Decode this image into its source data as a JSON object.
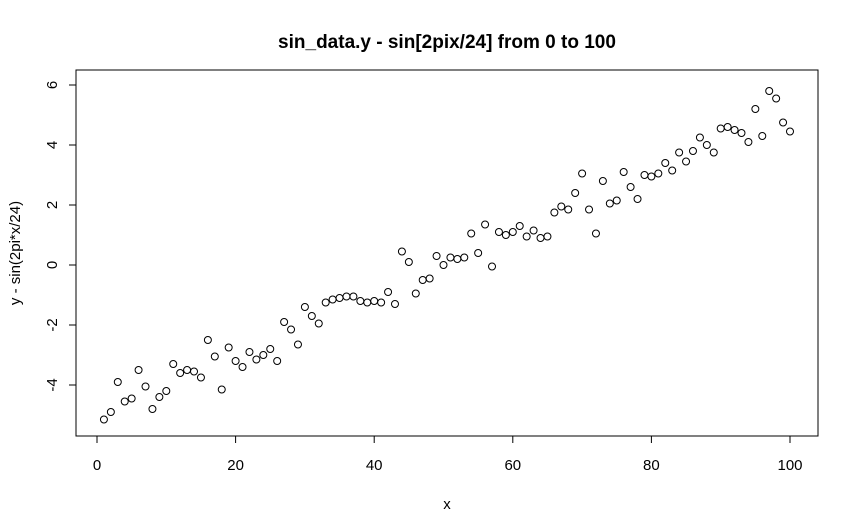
{
  "chart_data": {
    "type": "scatter",
    "title": "sin_data.y  - sin[2pix/24] from 0 to 100",
    "xlabel": "x",
    "ylabel": "y - sin(2pi*x/24)",
    "xlim": [
      0,
      100
    ],
    "ylim": [
      -5.5,
      6.3
    ],
    "x_ticks": [
      0,
      20,
      40,
      60,
      80,
      100
    ],
    "y_ticks": [
      -4,
      -2,
      0,
      2,
      4,
      6
    ],
    "grid": false,
    "legend": "none",
    "point_style": "open-circle",
    "series": [
      {
        "x": [
          1,
          2,
          3,
          4,
          5,
          6,
          7,
          8,
          9,
          10,
          11,
          12,
          13,
          14,
          15,
          16,
          17,
          18,
          19,
          20,
          21,
          22,
          23,
          24,
          25,
          26,
          27,
          28,
          29,
          30,
          31,
          32,
          33,
          34,
          35,
          36,
          37,
          38,
          39,
          40,
          41,
          42,
          43,
          44,
          45,
          46,
          47,
          48,
          49,
          50,
          51,
          52,
          53,
          54,
          55,
          56,
          57,
          58,
          59,
          60,
          61,
          62,
          63,
          64,
          65,
          66,
          67,
          68,
          69,
          70,
          71,
          72,
          73,
          74,
          75,
          76,
          77,
          78,
          79,
          80,
          81,
          82,
          83,
          84,
          85,
          86,
          87,
          88,
          89,
          90,
          91,
          92,
          93,
          94,
          95,
          96,
          97,
          98,
          99,
          100
        ],
        "y": [
          -5.15,
          -4.9,
          -3.9,
          -4.55,
          -4.45,
          -3.5,
          -4.05,
          -4.8,
          -4.4,
          -4.2,
          -3.3,
          -3.6,
          -3.5,
          -3.55,
          -3.75,
          -2.5,
          -3.05,
          -4.15,
          -2.75,
          -3.2,
          -3.4,
          -2.9,
          -3.15,
          -3.0,
          -2.8,
          -3.2,
          -1.9,
          -2.15,
          -2.65,
          -1.4,
          -1.7,
          -1.95,
          -1.25,
          -1.15,
          -1.1,
          -1.05,
          -1.05,
          -1.2,
          -1.25,
          -1.2,
          -1.25,
          -0.9,
          -1.3,
          0.45,
          0.1,
          -0.95,
          -0.5,
          -0.45,
          0.3,
          0.0,
          0.25,
          0.2,
          0.25,
          1.05,
          0.4,
          1.35,
          -0.05,
          1.1,
          1.0,
          1.1,
          1.3,
          0.95,
          1.15,
          0.9,
          0.95,
          1.75,
          1.95,
          1.85,
          2.4,
          3.05,
          1.85,
          1.05,
          2.8,
          2.05,
          2.15,
          3.1,
          2.6,
          2.2,
          3.0,
          2.95,
          3.05,
          3.4,
          3.15,
          3.75,
          3.45,
          3.8,
          4.25,
          4.0,
          3.75,
          4.55,
          4.6,
          4.5,
          4.4,
          4.1,
          5.2,
          4.3,
          5.8,
          5.55,
          4.75,
          4.45
        ]
      }
    ]
  }
}
